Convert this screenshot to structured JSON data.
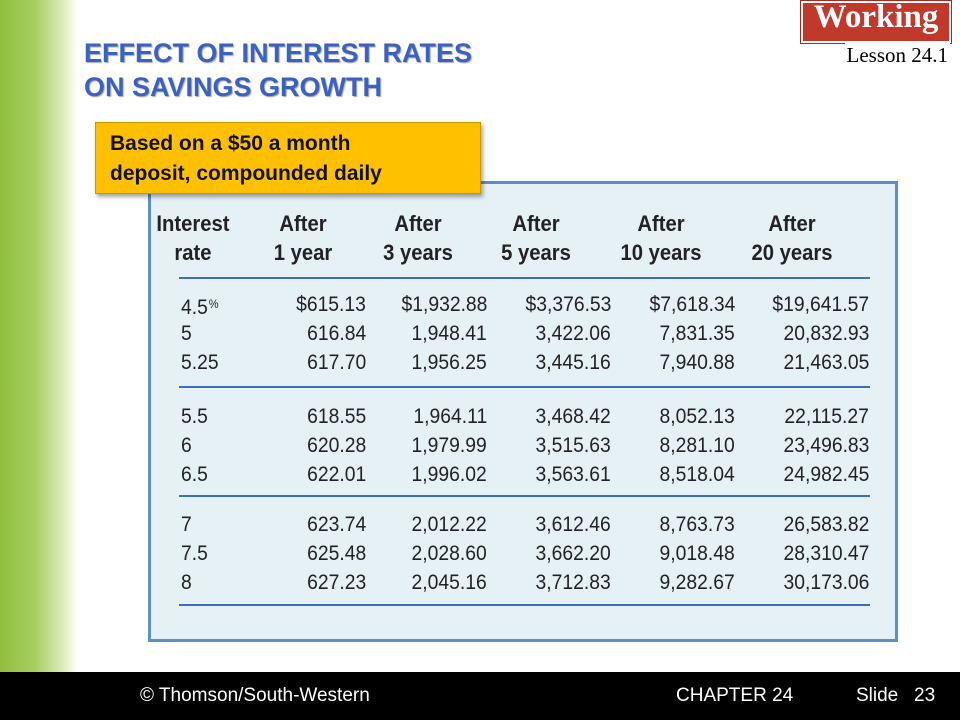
{
  "slide": {
    "title_lines": [
      "EFFECT OF INTEREST RATES",
      "ON SAVINGS GROWTH"
    ],
    "brand": "Working",
    "lesson": "Lesson 24.1",
    "callout_lines": [
      "Based on a $50 a month",
      "deposit, compounded daily"
    ]
  },
  "table": {
    "headers": [
      [
        "Interest",
        "rate"
      ],
      [
        "After",
        "1 year"
      ],
      [
        "After",
        "3 years"
      ],
      [
        "After",
        "5 years"
      ],
      [
        "After",
        "10 years"
      ],
      [
        "After",
        "20 years"
      ]
    ],
    "percent_sign": "%",
    "groups": [
      [
        [
          "4.5",
          "$615.13",
          "$1,932.88",
          "$3,376.53",
          "$7,618.34",
          "$19,641.57"
        ],
        [
          "5",
          "616.84",
          "1,948.41",
          "3,422.06",
          "7,831.35",
          "20,832.93"
        ],
        [
          "5.25",
          "617.70",
          "1,956.25",
          "3,445.16",
          "7,940.88",
          "21,463.05"
        ]
      ],
      [
        [
          "5.5",
          "618.55",
          "1,964.11",
          "3,468.42",
          "8,052.13",
          "22,115.27"
        ],
        [
          "6",
          "620.28",
          "1,979.99",
          "3,515.63",
          "8,281.10",
          "23,496.83"
        ],
        [
          "6.5",
          "622.01",
          "1,996.02",
          "3,563.61",
          "8,518.04",
          "24,982.45"
        ]
      ],
      [
        [
          "7",
          "623.74",
          "2,012.22",
          "3,612.46",
          "8,763.73",
          "26,583.82"
        ],
        [
          "7.5",
          "625.48",
          "2,028.60",
          "3,662.20",
          "9,018.48",
          "28,310.47"
        ],
        [
          "8",
          "627.23",
          "2,045.16",
          "3,712.83",
          "9,282.67",
          "30,173.06"
        ]
      ]
    ]
  },
  "footer": {
    "copyright": "© Thomson/South-Western",
    "chapter": "CHAPTER 24",
    "slide_label": "Slide",
    "slide_number": "23"
  }
}
